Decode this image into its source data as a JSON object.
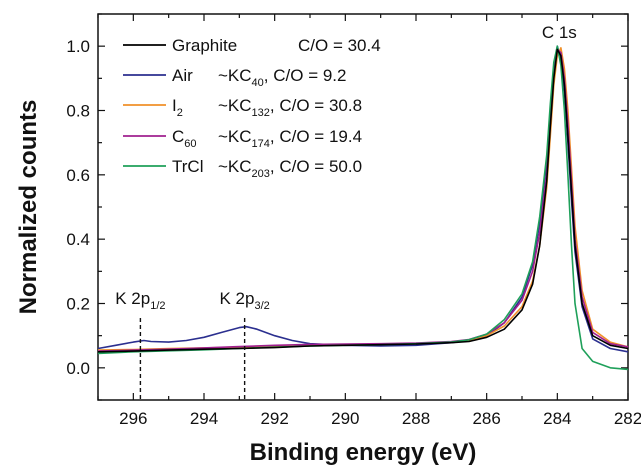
{
  "chart_data": {
    "type": "line",
    "xlabel": "Binding energy (eV)",
    "ylabel": "Normalized counts",
    "xlim": [
      297,
      282
    ],
    "ylim": [
      -0.1,
      1.1
    ],
    "x_reversed": true,
    "xticks": [
      296,
      294,
      292,
      290,
      288,
      286,
      284,
      282
    ],
    "yticks": [
      0.0,
      0.2,
      0.4,
      0.6,
      0.8,
      1.0
    ],
    "legend_position": "top-left",
    "series": [
      {
        "name": "Graphite",
        "color": "#000000",
        "legend_mid": "",
        "legend_sub": "",
        "legend_ratio": "C/O = 30.4",
        "x": [
          297,
          296,
          295,
          294,
          293,
          292,
          291,
          290,
          289,
          288,
          287,
          286.5,
          286,
          285.5,
          285,
          284.7,
          284.5,
          284.3,
          284.2,
          284.1,
          284.0,
          283.9,
          283.8,
          283.7,
          283.6,
          283.5,
          283.3,
          283.0,
          282.5,
          282
        ],
        "y": [
          0.05,
          0.052,
          0.055,
          0.058,
          0.06,
          0.063,
          0.068,
          0.07,
          0.072,
          0.074,
          0.078,
          0.082,
          0.095,
          0.12,
          0.18,
          0.26,
          0.38,
          0.58,
          0.75,
          0.9,
          0.99,
          0.97,
          0.88,
          0.72,
          0.55,
          0.38,
          0.2,
          0.1,
          0.07,
          0.06
        ]
      },
      {
        "name": "Air",
        "color": "#2b2f8f",
        "legend_mid": "~KC",
        "legend_sub": "40",
        "legend_ratio": ", C/O = 9.2",
        "x": [
          297,
          296.5,
          296,
          295.7,
          295.5,
          295,
          294.5,
          294,
          293.5,
          293,
          292.8,
          292.5,
          292,
          291.5,
          291,
          290,
          289,
          288,
          287,
          286.5,
          286,
          285.5,
          285,
          284.7,
          284.5,
          284.3,
          284.2,
          284.1,
          284.0,
          283.9,
          283.8,
          283.7,
          283.6,
          283.5,
          283.3,
          283.0,
          282.5,
          282
        ],
        "y": [
          0.06,
          0.07,
          0.08,
          0.085,
          0.082,
          0.08,
          0.085,
          0.095,
          0.11,
          0.125,
          0.128,
          0.12,
          0.1,
          0.085,
          0.075,
          0.07,
          0.068,
          0.07,
          0.078,
          0.085,
          0.1,
          0.14,
          0.22,
          0.32,
          0.45,
          0.64,
          0.8,
          0.93,
          1.0,
          0.96,
          0.86,
          0.7,
          0.52,
          0.36,
          0.19,
          0.09,
          0.06,
          0.05
        ]
      },
      {
        "name": "I",
        "color": "#f0902a",
        "legend_name_sub": "2",
        "legend_mid": "~KC",
        "legend_sub": "132",
        "legend_ratio": ", C/O = 30.8",
        "x": [
          297,
          296,
          295,
          294,
          293,
          292,
          291,
          290,
          289,
          288,
          287,
          286.5,
          286,
          285.5,
          285,
          284.7,
          284.5,
          284.3,
          284.2,
          284.1,
          284.0,
          283.9,
          283.8,
          283.7,
          283.6,
          283.5,
          283.3,
          283.0,
          282.5,
          282
        ],
        "y": [
          0.055,
          0.057,
          0.06,
          0.062,
          0.064,
          0.066,
          0.07,
          0.072,
          0.074,
          0.076,
          0.08,
          0.085,
          0.1,
          0.13,
          0.19,
          0.27,
          0.38,
          0.56,
          0.72,
          0.88,
          0.97,
          0.995,
          0.93,
          0.8,
          0.62,
          0.44,
          0.24,
          0.12,
          0.08,
          0.065
        ]
      },
      {
        "name": "C",
        "color": "#a0208f",
        "legend_name_sub": "60",
        "legend_mid": "~KC",
        "legend_sub": "174",
        "legend_ratio": ", C/O = 19.4",
        "x": [
          297,
          296,
          295,
          294,
          293,
          292,
          291,
          290,
          289,
          288,
          287,
          286.5,
          286,
          285.5,
          285,
          284.7,
          284.5,
          284.3,
          284.2,
          284.1,
          284.0,
          283.9,
          283.8,
          283.7,
          283.6,
          283.5,
          283.3,
          283.0,
          282.5,
          282
        ],
        "y": [
          0.052,
          0.055,
          0.058,
          0.062,
          0.066,
          0.07,
          0.073,
          0.074,
          0.075,
          0.077,
          0.082,
          0.088,
          0.105,
          0.14,
          0.21,
          0.3,
          0.42,
          0.6,
          0.76,
          0.91,
          0.99,
          0.98,
          0.9,
          0.76,
          0.58,
          0.4,
          0.22,
          0.11,
          0.075,
          0.065
        ]
      },
      {
        "name": "TrCl",
        "color": "#1fa05a",
        "legend_mid": "~KC",
        "legend_sub": "203",
        "legend_ratio": ", C/O = 50.0",
        "x": [
          297,
          296,
          295,
          294,
          293,
          292,
          291,
          290,
          289,
          288,
          287,
          286.5,
          286,
          285.5,
          285,
          284.7,
          284.5,
          284.3,
          284.2,
          284.1,
          284.0,
          283.9,
          283.8,
          283.7,
          283.6,
          283.5,
          283.3,
          283.0,
          282.5,
          282
        ],
        "y": [
          0.045,
          0.05,
          0.053,
          0.056,
          0.06,
          0.064,
          0.068,
          0.07,
          0.072,
          0.075,
          0.08,
          0.087,
          0.105,
          0.15,
          0.23,
          0.33,
          0.47,
          0.66,
          0.82,
          0.95,
          1.0,
          0.94,
          0.8,
          0.6,
          0.38,
          0.2,
          0.06,
          0.02,
          0.0,
          -0.005
        ]
      }
    ],
    "annotations": [
      {
        "id": "k2p12",
        "main": "K 2p",
        "sub": "1/2",
        "x": 295.8
      },
      {
        "id": "k2p32",
        "main": "K 2p",
        "sub": "3/2",
        "x": 292.85
      },
      {
        "id": "c1s",
        "main": "C 1s",
        "sub": "",
        "x": 284.0
      }
    ]
  }
}
